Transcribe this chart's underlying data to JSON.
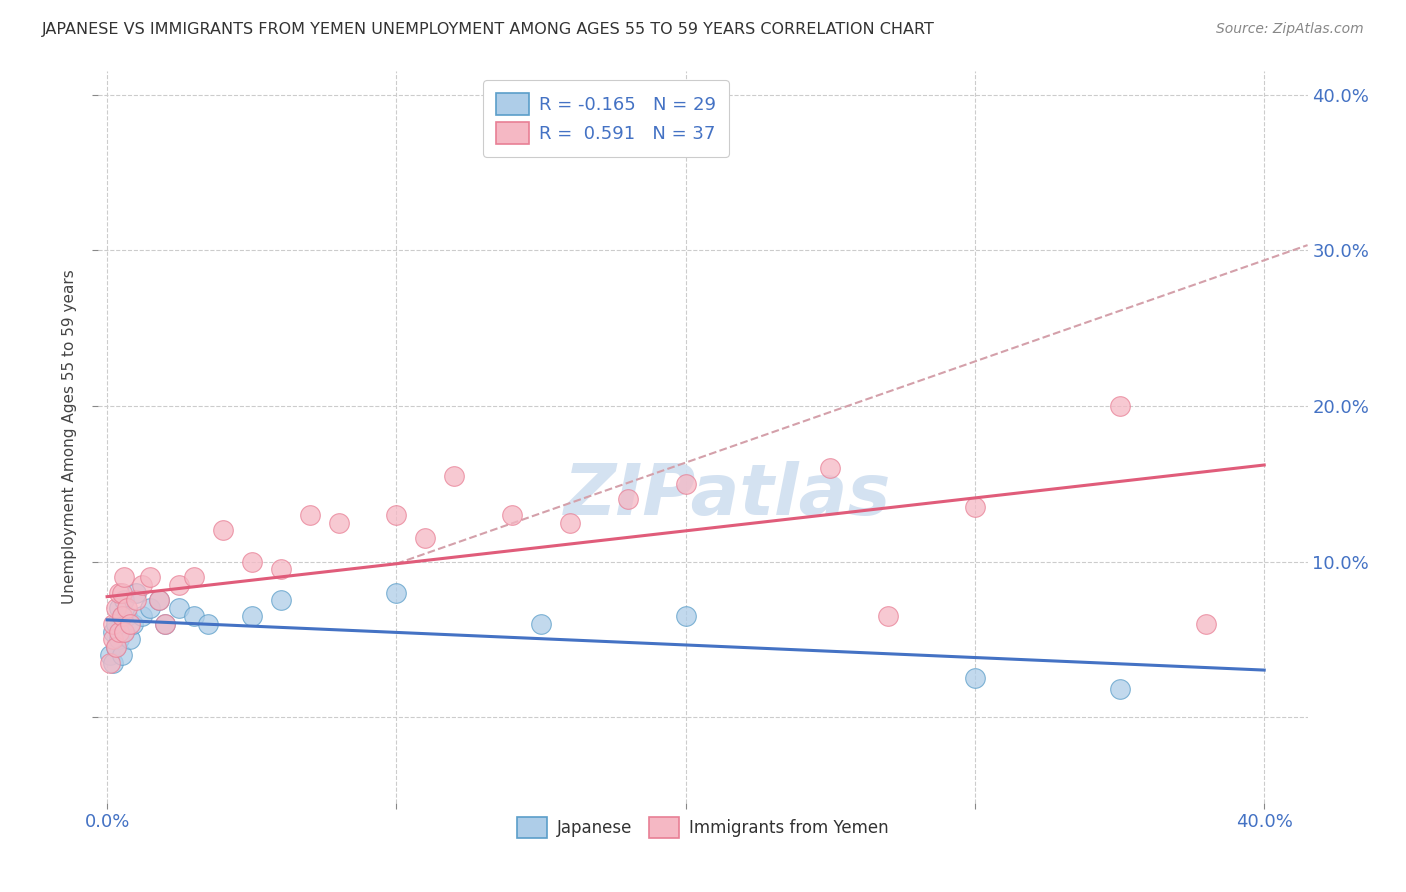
{
  "title": "JAPANESE VS IMMIGRANTS FROM YEMEN UNEMPLOYMENT AMONG AGES 55 TO 59 YEARS CORRELATION CHART",
  "source": "Source: ZipAtlas.com",
  "ylabel": "Unemployment Among Ages 55 to 59 years",
  "xlim": [
    -0.003,
    0.415
  ],
  "ylim": [
    -0.055,
    0.415
  ],
  "xticks": [
    0.0,
    0.1,
    0.2,
    0.3,
    0.4
  ],
  "yticks": [
    0.0,
    0.1,
    0.2,
    0.3,
    0.4
  ],
  "xticklabels": [
    "0.0%",
    "",
    "",
    "",
    "40.0%"
  ],
  "yticklabels_right": [
    "",
    "10.0%",
    "20.0%",
    "30.0%",
    "40.0%"
  ],
  "R_japanese": -0.165,
  "N_japanese": 29,
  "R_yemen": 0.591,
  "N_yemen": 37,
  "blue_face": "#aecde8",
  "blue_edge": "#5b9ec9",
  "pink_face": "#f5b8c4",
  "pink_edge": "#e87f95",
  "blue_line": "#4472c4",
  "pink_line": "#e05c7a",
  "dash_line": "#d4a0aa",
  "watermark_color": "#d0dff0",
  "jap_x": [
    0.001,
    0.002,
    0.002,
    0.003,
    0.003,
    0.004,
    0.004,
    0.005,
    0.005,
    0.006,
    0.006,
    0.007,
    0.008,
    0.009,
    0.01,
    0.012,
    0.015,
    0.018,
    0.02,
    0.025,
    0.03,
    0.035,
    0.05,
    0.06,
    0.1,
    0.15,
    0.2,
    0.3,
    0.35
  ],
  "jap_y": [
    0.04,
    0.035,
    0.055,
    0.045,
    0.06,
    0.05,
    0.07,
    0.04,
    0.065,
    0.055,
    0.075,
    0.065,
    0.05,
    0.06,
    0.08,
    0.065,
    0.07,
    0.075,
    0.06,
    0.07,
    0.065,
    0.06,
    0.065,
    0.075,
    0.08,
    0.06,
    0.065,
    0.025,
    0.018
  ],
  "yem_x": [
    0.001,
    0.002,
    0.002,
    0.003,
    0.003,
    0.004,
    0.004,
    0.005,
    0.005,
    0.006,
    0.006,
    0.007,
    0.008,
    0.01,
    0.012,
    0.015,
    0.018,
    0.02,
    0.025,
    0.03,
    0.04,
    0.05,
    0.06,
    0.07,
    0.08,
    0.1,
    0.11,
    0.12,
    0.14,
    0.16,
    0.18,
    0.2,
    0.25,
    0.27,
    0.3,
    0.35,
    0.38
  ],
  "yem_y": [
    0.035,
    0.05,
    0.06,
    0.045,
    0.07,
    0.055,
    0.08,
    0.065,
    0.08,
    0.055,
    0.09,
    0.07,
    0.06,
    0.075,
    0.085,
    0.09,
    0.075,
    0.06,
    0.085,
    0.09,
    0.12,
    0.1,
    0.095,
    0.13,
    0.125,
    0.13,
    0.115,
    0.155,
    0.13,
    0.125,
    0.14,
    0.15,
    0.16,
    0.065,
    0.135,
    0.2,
    0.06
  ]
}
